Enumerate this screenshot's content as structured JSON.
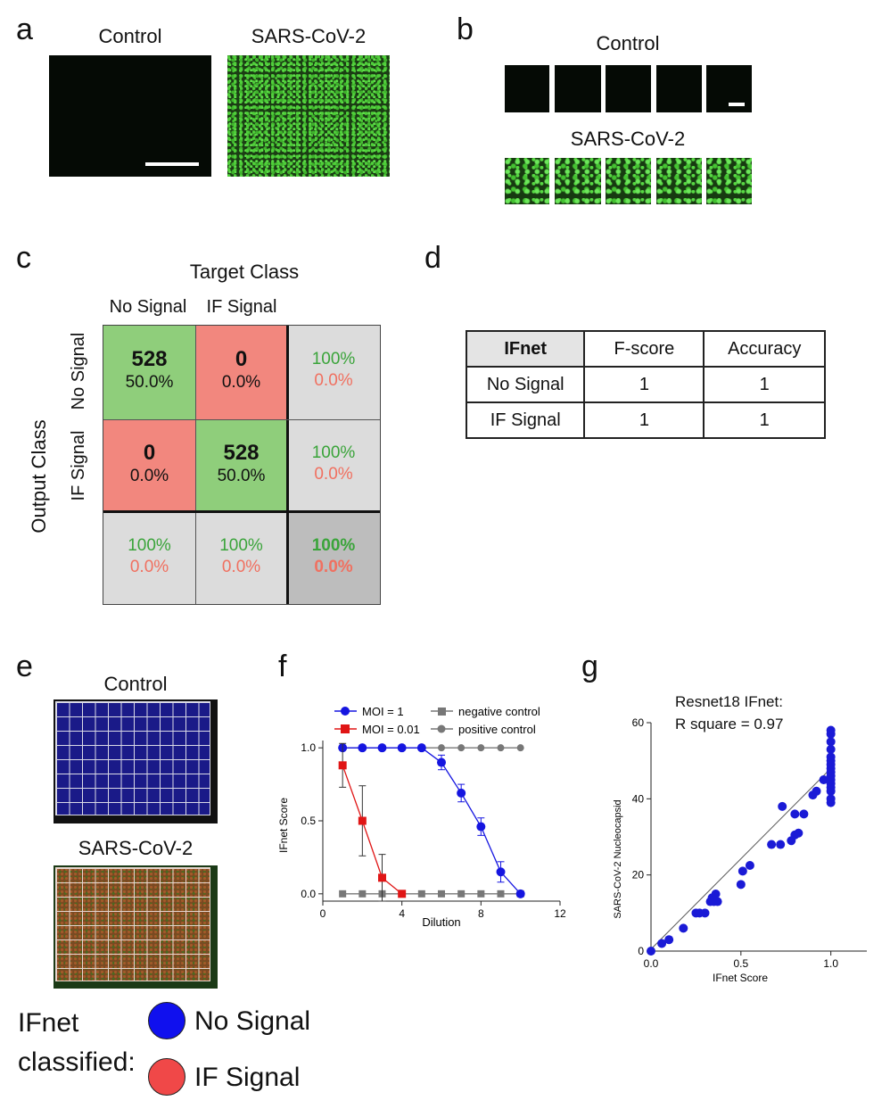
{
  "panels": {
    "a": "a",
    "b": "b",
    "c": "c",
    "d": "d",
    "e": "e",
    "f": "f",
    "g": "g"
  },
  "panel_a": {
    "control_label": "Control",
    "sars_label": "SARS-CoV-2"
  },
  "panel_b": {
    "control_label": "Control",
    "sars_label": "SARS-CoV-2"
  },
  "panel_c": {
    "title": "Target Class",
    "col_labels": [
      "No Signal",
      "IF Signal"
    ],
    "y_title": "Output Class",
    "row_labels": [
      "No Signal",
      "IF Signal"
    ],
    "cells": [
      [
        "528",
        "50.0%",
        "0",
        "0.0%",
        "100%",
        "0.0%"
      ],
      [
        "0",
        "0.0%",
        "528",
        "50.0%",
        "100%",
        "0.0%"
      ],
      [
        "100%",
        "0.0%",
        "100%",
        "0.0%",
        "100%",
        "0.0%"
      ]
    ],
    "colors": {
      "green": "#8fce7b",
      "red": "#f2877e",
      "gray": "#dcdcdc",
      "darkgray": "#bdbdbd"
    }
  },
  "panel_d": {
    "header": [
      "IFnet",
      "F-score",
      "Accuracy"
    ],
    "rows": [
      [
        "No Signal",
        "1",
        "1"
      ],
      [
        "IF Signal",
        "1",
        "1"
      ]
    ]
  },
  "panel_e": {
    "control_label": "Control",
    "sars_label": "SARS-CoV-2",
    "legend_title_1": "IFnet",
    "legend_title_2": "classified:",
    "legend": [
      {
        "label": "No Signal",
        "color": "#1010ee"
      },
      {
        "label": "IF Signal",
        "color": "#f04848"
      }
    ]
  },
  "chart_data": [
    {
      "id": "f",
      "type": "line",
      "xlabel": "Dilution",
      "ylabel": "IFnet Score",
      "xlim": [
        0,
        12
      ],
      "ylim": [
        -0.05,
        1.05
      ],
      "xticks": [
        "0",
        "4",
        "8",
        "12"
      ],
      "yticks": [
        "0.0",
        "0.5",
        "1.0"
      ],
      "series": [
        {
          "name": "MOI = 1",
          "color": "#1515e0",
          "marker": "circle",
          "x": [
            1,
            2,
            3,
            4,
            5,
            6,
            7,
            8,
            9,
            10
          ],
          "y": [
            1.0,
            1.0,
            1.0,
            1.0,
            1.0,
            0.9,
            0.69,
            0.46,
            0.15,
            0.0
          ]
        },
        {
          "name": "MOI = 0.01",
          "color": "#e01515",
          "marker": "square",
          "x": [
            1,
            2,
            3,
            4
          ],
          "y": [
            0.88,
            0.5,
            0.11,
            0.0
          ]
        },
        {
          "name": "negative control",
          "color": "#777777",
          "marker": "square",
          "x": [
            1,
            2,
            3,
            4,
            5,
            6,
            7,
            8,
            9,
            10
          ],
          "y": [
            0,
            0,
            0,
            0,
            0,
            0,
            0,
            0,
            0,
            0
          ]
        },
        {
          "name": "positive control",
          "color": "#777777",
          "marker": "circle",
          "x": [
            1,
            2,
            3,
            4,
            5,
            6,
            7,
            8,
            9,
            10
          ],
          "y": [
            1,
            1,
            1,
            1,
            1,
            1,
            1,
            1,
            1,
            1
          ]
        }
      ]
    },
    {
      "id": "g",
      "type": "scatter",
      "annotation_1": "Resnet18 IFnet:",
      "annotation_2": "R square = 0.97",
      "xlabel": "IFnet Score",
      "ylabel": "SARS-CoV-2 Nucleocapsid",
      "xlim": [
        0,
        1.2
      ],
      "ylim": [
        0,
        60
      ],
      "xticks": [
        "0.0",
        "0.5",
        "1.0"
      ],
      "yticks": [
        "0",
        "20",
        "40",
        "60"
      ],
      "fit": {
        "x": [
          0.0,
          1.0
        ],
        "y": [
          0.5,
          48
        ]
      },
      "points": {
        "x": [
          0.0,
          0.06,
          0.1,
          0.18,
          0.25,
          0.27,
          0.3,
          0.33,
          0.34,
          0.35,
          0.36,
          0.37,
          0.5,
          0.51,
          0.55,
          0.67,
          0.72,
          0.73,
          0.78,
          0.8,
          0.8,
          0.82,
          0.85,
          0.9,
          0.92,
          0.96,
          1.0,
          1.0,
          1.0,
          1.0,
          1.0,
          1.0,
          1.0,
          1.0,
          1.0,
          1.0,
          1.0,
          1.0,
          1.0,
          1.0,
          1.0,
          1.0
        ],
        "y": [
          0,
          2,
          3,
          6,
          10,
          10,
          10,
          13,
          14,
          13,
          15,
          13,
          17.5,
          21,
          22.5,
          28,
          28,
          38,
          29,
          30.5,
          36,
          31,
          36,
          41,
          42,
          45,
          39,
          40,
          42,
          43,
          44,
          45,
          46,
          47,
          48,
          49,
          50,
          51,
          53,
          55,
          57,
          58
        ]
      }
    }
  ]
}
